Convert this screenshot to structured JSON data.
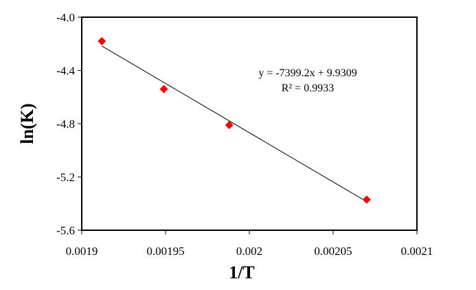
{
  "chart_data": {
    "type": "scatter",
    "title": "",
    "xlabel": "1/T",
    "ylabel": "ln(K)",
    "xlim": [
      0.0019,
      0.0021
    ],
    "ylim": [
      -5.6,
      -4.0
    ],
    "x_ticks": [
      "0.0019",
      "0.00195",
      "0.002",
      "0.00205",
      "0.0021"
    ],
    "y_ticks": [
      "-4.0",
      "-4.4",
      "-4.8",
      "-5.2",
      "-5.6"
    ],
    "points": [
      {
        "x": 0.001912,
        "y": -4.18
      },
      {
        "x": 0.001949,
        "y": -4.54
      },
      {
        "x": 0.001988,
        "y": -4.81
      },
      {
        "x": 0.00207,
        "y": -5.37
      }
    ],
    "marker_color": "#ff0000",
    "trendline": {
      "slope": -7399.2,
      "intercept": 9.9309,
      "x_from": 0.001912,
      "x_to": 0.00207
    },
    "annotation": {
      "equation": "y = -7399.2x + 9.9309",
      "r_squared": "R² = 0.9933"
    },
    "grid": false,
    "legend": "none"
  }
}
